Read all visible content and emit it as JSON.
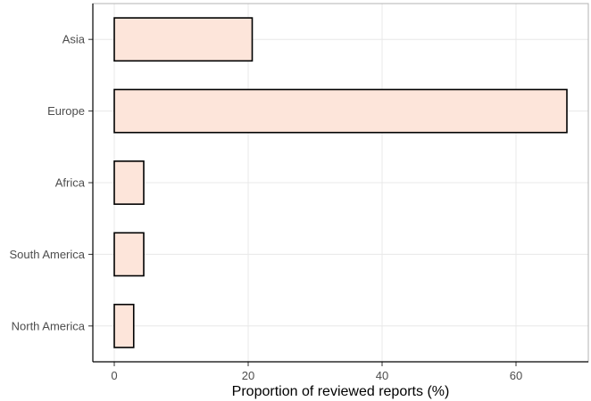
{
  "chart_data": {
    "type": "bar",
    "orientation": "horizontal",
    "categories": [
      "Asia",
      "Europe",
      "Africa",
      "South America",
      "North America"
    ],
    "values": [
      20.6,
      67.6,
      4.4,
      4.4,
      2.9
    ],
    "xlabel": "Proportion of reviewed reports (%)",
    "ylabel": "",
    "xlim": [
      -3.2,
      70.8
    ],
    "xticks": [
      0,
      20,
      40,
      60
    ],
    "xtick_labels": [
      "0",
      "20",
      "40",
      "60"
    ],
    "grid": true,
    "legend": "none",
    "colors": {
      "bar_fill": "#fde5da",
      "bar_outline": "#000000",
      "grid": "#e8e8e8",
      "panel_border": "#000000",
      "tick_label": "#4d4d4d"
    }
  }
}
